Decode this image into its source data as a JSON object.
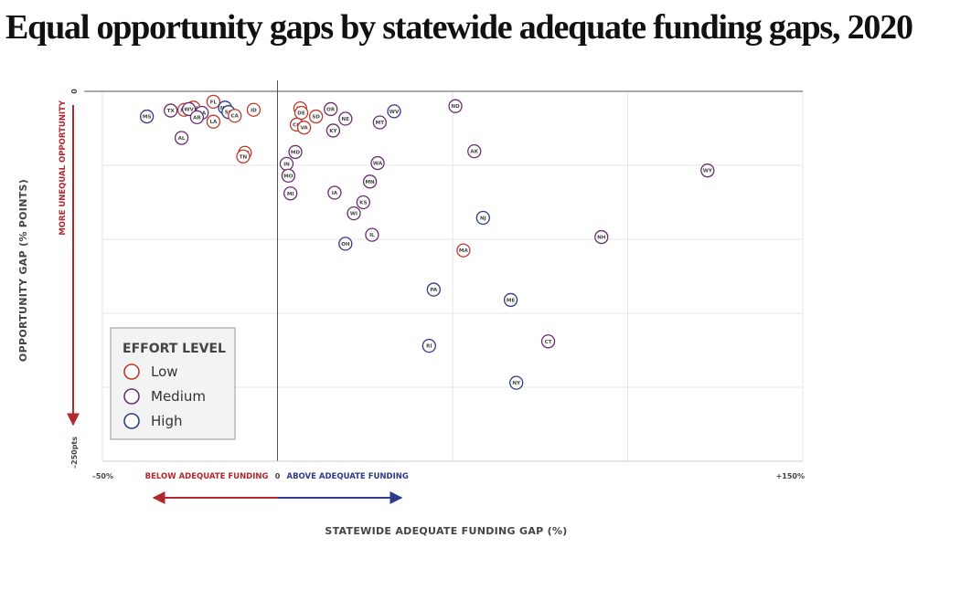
{
  "chart_data": {
    "type": "scatter",
    "title": "Equal opportunity gaps by statewide adequate funding gaps, 2020",
    "xlabel": "STATEWIDE ADEQUATE FUNDING GAP (%)",
    "ylabel": "OPPORTUNITY GAP (% POINTS)",
    "xlim": [
      -50,
      150
    ],
    "ylim": [
      -250,
      0
    ],
    "x_ticks": [
      {
        "value": -50,
        "label": "–50%"
      },
      {
        "value": 0,
        "label": "0"
      },
      {
        "value": 150,
        "label": "+150%"
      }
    ],
    "y_ticks": [
      {
        "value": 0,
        "label": "0"
      },
      {
        "value": -250,
        "label": "–250pts"
      }
    ],
    "x_direction_labels": {
      "negative": "BELOW ADEQUATE FUNDING",
      "positive": "ABOVE ADEQUATE FUNDING"
    },
    "y_direction_label": "MORE UNEQUAL OPPORTUNITY",
    "grid": true,
    "legend": {
      "title": "EFFORT LEVEL",
      "position": "bottom-left",
      "items": [
        {
          "label": "Low",
          "color": "#c0392b"
        },
        {
          "label": "Medium",
          "color": "#6a2c70"
        },
        {
          "label": "High",
          "color": "#2e3a8c"
        }
      ]
    },
    "points": [
      {
        "label": "MS",
        "x": -37.3,
        "y": -17.0,
        "effort": "High"
      },
      {
        "label": "TX",
        "x": -30.5,
        "y": -13.0,
        "effort": "Medium"
      },
      {
        "label": "NC",
        "x": -26.6,
        "y": -12.5,
        "effort": "Low"
      },
      {
        "label": "NV",
        "x": -24.0,
        "y": -11.0,
        "effort": "Low"
      },
      {
        "label": "WV",
        "x": -25.3,
        "y": -12.0,
        "effort": "Medium"
      },
      {
        "label": "GA",
        "x": -21.6,
        "y": -14.5,
        "effort": "Medium"
      },
      {
        "label": "AR",
        "x": -23.0,
        "y": -17.5,
        "effort": "Medium"
      },
      {
        "label": "FL",
        "x": -18.3,
        "y": -7.0,
        "effort": "Low"
      },
      {
        "label": "NM",
        "x": -15.0,
        "y": -11.0,
        "effort": "High"
      },
      {
        "label": "SC",
        "x": -14.0,
        "y": -14.0,
        "effort": "High"
      },
      {
        "label": "CA",
        "x": -12.2,
        "y": -16.5,
        "effort": "Low"
      },
      {
        "label": "ID",
        "x": -6.8,
        "y": -12.5,
        "effort": "Low"
      },
      {
        "label": "LA",
        "x": -18.3,
        "y": -20.5,
        "effort": "Low"
      },
      {
        "label": "AL",
        "x": -27.4,
        "y": -31.5,
        "effort": "Medium"
      },
      {
        "label": "OK",
        "x": -9.3,
        "y": -41.5,
        "effort": "Low"
      },
      {
        "label": "TN",
        "x": -9.8,
        "y": -44.0,
        "effort": "Low"
      },
      {
        "label": "UT",
        "x": 6.5,
        "y": -11.5,
        "effort": "Low"
      },
      {
        "label": "DE",
        "x": 6.8,
        "y": -14.5,
        "effort": "Low"
      },
      {
        "label": "OR",
        "x": 15.2,
        "y": -12.0,
        "effort": "Medium"
      },
      {
        "label": "SD",
        "x": 11.0,
        "y": -17.0,
        "effort": "Low"
      },
      {
        "label": "NE",
        "x": 19.4,
        "y": -18.5,
        "effort": "Medium"
      },
      {
        "label": "WV",
        "x": 33.3,
        "y": -13.5,
        "effort": "High"
      },
      {
        "label": "MT",
        "x": 29.2,
        "y": -21.0,
        "effort": "Medium"
      },
      {
        "label": "CO",
        "x": 5.5,
        "y": -22.5,
        "effort": "Low"
      },
      {
        "label": "VA",
        "x": 7.6,
        "y": -24.5,
        "effort": "Low"
      },
      {
        "label": "KY",
        "x": 15.9,
        "y": -26.5,
        "effort": "Medium"
      },
      {
        "label": "ND",
        "x": 50.8,
        "y": -10.0,
        "effort": "Medium"
      },
      {
        "label": "MD",
        "x": 5.1,
        "y": -41.0,
        "effort": "Medium"
      },
      {
        "label": "IN",
        "x": 2.6,
        "y": -49.0,
        "effort": "Medium"
      },
      {
        "label": "MO",
        "x": 3.1,
        "y": -57.0,
        "effort": "Medium"
      },
      {
        "label": "WA",
        "x": 28.6,
        "y": -48.5,
        "effort": "Medium"
      },
      {
        "label": "MN",
        "x": 26.4,
        "y": -61.0,
        "effort": "Medium"
      },
      {
        "label": "AK",
        "x": 56.2,
        "y": -40.5,
        "effort": "Medium"
      },
      {
        "label": "WY",
        "x": 122.8,
        "y": -53.5,
        "effort": "Medium"
      },
      {
        "label": "MI",
        "x": 3.7,
        "y": -69.0,
        "effort": "Medium"
      },
      {
        "label": "IA",
        "x": 16.3,
        "y": -68.5,
        "effort": "Medium"
      },
      {
        "label": "KS",
        "x": 24.5,
        "y": -75.0,
        "effort": "Medium"
      },
      {
        "label": "WI",
        "x": 21.8,
        "y": -82.5,
        "effort": "Medium"
      },
      {
        "label": "NJ",
        "x": 58.7,
        "y": -85.5,
        "effort": "High"
      },
      {
        "label": "IL",
        "x": 27.0,
        "y": -97.0,
        "effort": "Medium"
      },
      {
        "label": "OH",
        "x": 19.4,
        "y": -103.0,
        "effort": "High"
      },
      {
        "label": "NH",
        "x": 92.5,
        "y": -98.5,
        "effort": "Medium"
      },
      {
        "label": "MA",
        "x": 53.1,
        "y": -107.5,
        "effort": "Low"
      },
      {
        "label": "PA",
        "x": 44.6,
        "y": -134.0,
        "effort": "High"
      },
      {
        "label": "ME",
        "x": 66.6,
        "y": -141.0,
        "effort": "High"
      },
      {
        "label": "CT",
        "x": 77.3,
        "y": -169.0,
        "effort": "Medium"
      },
      {
        "label": "RI",
        "x": 43.3,
        "y": -172.0,
        "effort": "High"
      },
      {
        "label": "NY",
        "x": 68.2,
        "y": -197.0,
        "effort": "High"
      }
    ]
  }
}
